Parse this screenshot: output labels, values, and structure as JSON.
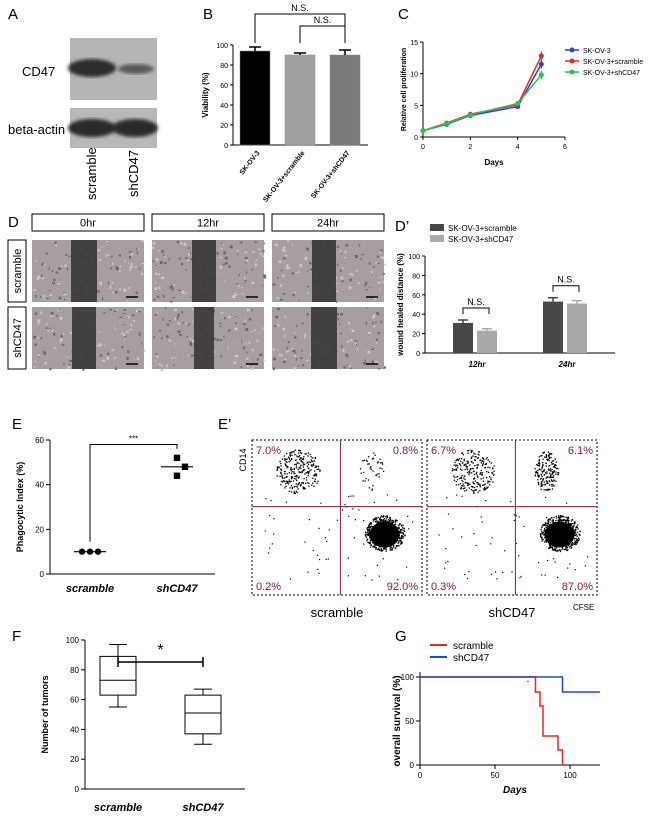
{
  "panel_labels": {
    "A": "A",
    "B": "B",
    "C": "C",
    "D": "D",
    "D2": "D’",
    "E": "E",
    "E2": "E’",
    "F": "F",
    "G": "G"
  },
  "colors": {
    "red": "#e8262b",
    "blue": "#2346d6",
    "green": "#27c44a",
    "dark_gray": "#474747",
    "light_gray": "#a9a9a9",
    "plot_maroon": "#8b1a3a"
  },
  "panelA": {
    "rows": [
      "CD47",
      "beta-actin"
    ],
    "lanes": [
      "scramble",
      "shCD47"
    ]
  },
  "panelB": {
    "chart_data": {
      "type": "bar",
      "categories": [
        "SK-OV-3",
        "SK-OV-3+scramble",
        "SK-OV-3+shCD47"
      ],
      "values": [
        94,
        90,
        90
      ],
      "errors": [
        4,
        2,
        5
      ],
      "bar_colors": [
        "#000000",
        "#a0a0a0",
        "#7a7a7a"
      ],
      "ylabel": "Viability (%)",
      "ylim": [
        0,
        100
      ],
      "yticks": [
        "0",
        "20",
        "40",
        "60",
        "80",
        "100"
      ],
      "significance": [
        "N.S.",
        "N.S."
      ]
    }
  },
  "panelC": {
    "chart_data": {
      "type": "line",
      "x": [
        0,
        1,
        2,
        4,
        5
      ],
      "series": [
        {
          "name": "SK-OV-3",
          "values": [
            1,
            2,
            3.4,
            4.8,
            11.5
          ],
          "color": "#2346d6"
        },
        {
          "name": "SK-OV-3+scramble",
          "values": [
            1,
            2.2,
            3.6,
            5.1,
            12.8
          ],
          "color": "#e8262b"
        },
        {
          "name": "SK-OV-3+shCD47",
          "values": [
            1,
            2.1,
            3.5,
            5.3,
            9.8
          ],
          "color": "#27c44a"
        }
      ],
      "xlabel": "Days",
      "ylabel": "Relative cell proliferation",
      "xlim": [
        0,
        6
      ],
      "ylim": [
        0,
        15
      ],
      "xticks": [
        "0",
        "2",
        "4",
        "6"
      ],
      "yticks": [
        "0",
        "5",
        "10",
        "15"
      ]
    }
  },
  "panelD": {
    "timepoints": [
      "0hr",
      "12hr",
      "24hr"
    ],
    "rows": [
      "scramble",
      "shCD47"
    ]
  },
  "panelD2": {
    "chart_data": {
      "type": "bar",
      "categories": [
        "12hr",
        "24hr"
      ],
      "series": [
        {
          "name": "SK-OV-3+scramble",
          "values": [
            31,
            53
          ],
          "errors": [
            3,
            4
          ],
          "color": "#474747"
        },
        {
          "name": "SK-OV-3+shCD47",
          "values": [
            23,
            51
          ],
          "errors": [
            2,
            3
          ],
          "color": "#a9a9a9"
        }
      ],
      "ylabel": "wound healed distance (%)",
      "ylim": [
        0,
        100
      ],
      "yticks": [
        "0",
        "20",
        "40",
        "60",
        "80",
        "100"
      ],
      "significance": [
        "N.S.",
        "N.S."
      ]
    }
  },
  "panelE": {
    "chart_data": {
      "type": "scatter",
      "categories": [
        "scramble",
        "shCD47"
      ],
      "points": [
        [
          10,
          10,
          10
        ],
        [
          52,
          48,
          44
        ]
      ],
      "means": [
        10,
        48
      ],
      "ylabel": "Phagocytic Index (%)",
      "ylim": [
        0,
        60
      ],
      "yticks": [
        "0",
        "20",
        "40",
        "60"
      ],
      "significance": "***"
    }
  },
  "panelE2": {
    "plots": [
      {
        "label": "scramble",
        "quadrants": [
          "7.0%",
          "0.8%",
          "0.2%",
          "92.0%"
        ]
      },
      {
        "label": "shCD47",
        "quadrants": [
          "6.7%",
          "6.1%",
          "0.3%",
          "87.0%"
        ]
      }
    ],
    "y_axis": "CD14",
    "x_axis": "CFSE"
  },
  "panelF": {
    "chart_data": {
      "type": "box",
      "categories": [
        "scramble",
        "shCD47"
      ],
      "boxes": [
        {
          "min": 55,
          "q1": 63,
          "median": 73,
          "q3": 89,
          "max": 97
        },
        {
          "min": 30,
          "q1": 37,
          "median": 51,
          "q3": 63,
          "max": 67
        }
      ],
      "ylabel": "Number of tumors",
      "ylim": [
        0,
        100
      ],
      "yticks": [
        "0",
        "20",
        "40",
        "60",
        "80",
        "100"
      ],
      "significance": "*"
    }
  },
  "panelG": {
    "chart_data": {
      "type": "line",
      "series": [
        {
          "name": "scramble",
          "x": [
            0,
            77,
            77,
            80,
            80,
            82,
            82,
            92,
            92,
            95,
            95
          ],
          "values": [
            100,
            100,
            83,
            83,
            67,
            67,
            33,
            33,
            17,
            17,
            0
          ],
          "color": "#e8262b"
        },
        {
          "name": "shCD47",
          "x": [
            0,
            95,
            95,
            120
          ],
          "values": [
            100,
            100,
            83,
            83
          ],
          "color": "#2346d6"
        }
      ],
      "xlabel": "Days",
      "ylabel": "overall survival (%)",
      "xlim": [
        0,
        120
      ],
      "ylim": [
        0,
        100
      ],
      "xticks": [
        "0",
        "50",
        "100"
      ],
      "yticks": [
        "0",
        "50",
        "100"
      ]
    }
  }
}
